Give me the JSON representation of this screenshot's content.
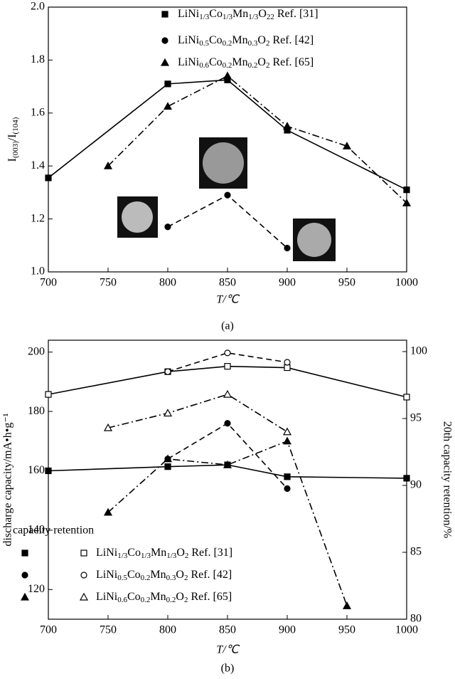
{
  "chart_data": [
    {
      "type": "line",
      "title": "(a)",
      "x_label": "T/℃",
      "y_label": "I(003)/I(104)",
      "xlim": [
        700,
        1000
      ],
      "xticks": [
        700,
        750,
        800,
        850,
        900,
        950,
        1000
      ],
      "ylim": [
        1,
        2
      ],
      "yticks": [
        {
          "value": 1,
          "label": "1.0"
        },
        1.2,
        1.4,
        1.6,
        1.8,
        {
          "value": 2,
          "label": "2.0"
        }
      ],
      "series": [
        {
          "name": "LiNi1/3Co1/3Mn1/3O22 Ref. [31]",
          "color": "#000",
          "marker": "square",
          "marker_fill": true,
          "dash": "solid",
          "x": [
            700,
            800,
            850,
            900,
            1000
          ],
          "values": [
            1.355,
            1.71,
            1.725,
            1.535,
            1.31
          ]
        },
        {
          "name": "LiNi0.5Co0.2Mn0.3O2 Ref. [42]",
          "color": "#000",
          "marker": "circle",
          "marker_fill": true,
          "dash": "dashed",
          "x": [
            800,
            850,
            900
          ],
          "values": [
            1.17,
            1.29,
            1.09
          ]
        },
        {
          "name": "LiNi0.6Co0.2Mn0.2O2 Ref. [65]",
          "color": "#000",
          "marker": "triangle",
          "marker_fill": true,
          "dash": "dashdot",
          "x": [
            750,
            800,
            850,
            900,
            950,
            1000
          ],
          "values": [
            1.4,
            1.625,
            1.74,
            1.55,
            1.475,
            1.26
          ]
        }
      ]
    },
    {
      "type": "line",
      "title": "(b)",
      "x_label": "T/℃",
      "y_label": "discharge capacity/mA•h•g⁻¹",
      "y2_label": "20th capacity retention/%",
      "legend_title": "capacity retention",
      "xlim": [
        700,
        1000
      ],
      "xticks": [
        700,
        750,
        800,
        850,
        900,
        950,
        1000
      ],
      "ylim": [
        110,
        204
      ],
      "yticks": [
        120,
        140,
        160,
        180,
        200
      ],
      "y2lim": [
        80,
        100.85
      ],
      "y2ticks": [
        80,
        85,
        90,
        95,
        100
      ],
      "series": [
        {
          "name": "LiNi1/3Co1/3Mn1/3O2 Ref. [31]",
          "color": "#000",
          "marker": "square",
          "marker_fill": true,
          "dash": "solid",
          "x": [
            700,
            800,
            850,
            900,
            1000
          ],
          "values": [
            160,
            161.4,
            162,
            158,
            157.5
          ]
        },
        {
          "name": "LiNi0.5Co0.2Mn0.3O2 Ref. [42]",
          "color": "#000",
          "marker": "circle",
          "marker_fill": true,
          "dash": "dashed",
          "x": [
            800,
            850,
            900
          ],
          "values": [
            164,
            176,
            154
          ]
        },
        {
          "name": "LiNi0.6Co0.2Mn0.2O2 Ref. [65]",
          "color": "#000",
          "marker": "triangle",
          "marker_fill": true,
          "dash": "dashdot",
          "x": [
            750,
            800,
            850,
            900,
            950
          ],
          "values": [
            146,
            164,
            162,
            170,
            114.5
          ]
        },
        {
          "color": "#000",
          "marker": "square",
          "marker_fill": false,
          "dash": "solid",
          "axis": "y2",
          "x": [
            700,
            800,
            850,
            900,
            1000
          ],
          "values": [
            96.8,
            98.5,
            98.9,
            98.8,
            96.6
          ]
        },
        {
          "color": "#000",
          "marker": "circle",
          "marker_fill": false,
          "dash": "dashed",
          "axis": "y2",
          "x": [
            800,
            850,
            900
          ],
          "values": [
            98.5,
            99.9,
            99.2
          ]
        },
        {
          "color": "#000",
          "marker": "triangle",
          "marker_fill": false,
          "dash": "dashdot",
          "axis": "y2",
          "x": [
            750,
            800,
            850,
            900
          ],
          "values": [
            94.3,
            95.4,
            96.8,
            94.0
          ]
        }
      ]
    }
  ]
}
